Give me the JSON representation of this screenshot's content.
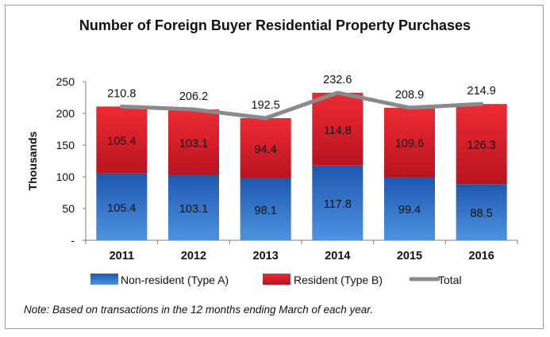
{
  "chart_data": {
    "type": "bar",
    "stacked": true,
    "title": "Number of Foreign Buyer Residential Property Purchases",
    "ylabel": "Thousands",
    "xlabel": "",
    "ylim": [
      0,
      250
    ],
    "yticks": [
      0,
      50,
      100,
      150,
      200,
      250
    ],
    "ytick_labels": [
      "-",
      "50",
      "100",
      "150",
      "200",
      "250"
    ],
    "categories": [
      "2011",
      "2012",
      "2013",
      "2014",
      "2015",
      "2016"
    ],
    "series": [
      {
        "name": "Non-resident (Type A)",
        "type": "bar",
        "color": "#2f6fc2",
        "values": [
          105.4,
          103.1,
          98.1,
          117.8,
          99.4,
          88.5
        ]
      },
      {
        "name": "Resident (Type B)",
        "type": "bar",
        "color": "#d51f2a",
        "values": [
          105.4,
          103.1,
          94.4,
          114.8,
          109.6,
          126.3
        ]
      },
      {
        "name": "Total",
        "type": "line",
        "color": "#8a8a8a",
        "values": [
          210.8,
          206.2,
          192.5,
          232.6,
          208.9,
          214.9
        ]
      }
    ],
    "legend_position": "bottom",
    "grid": false
  },
  "note": "Note: Based on transactions in the 12 months ending March of each year."
}
